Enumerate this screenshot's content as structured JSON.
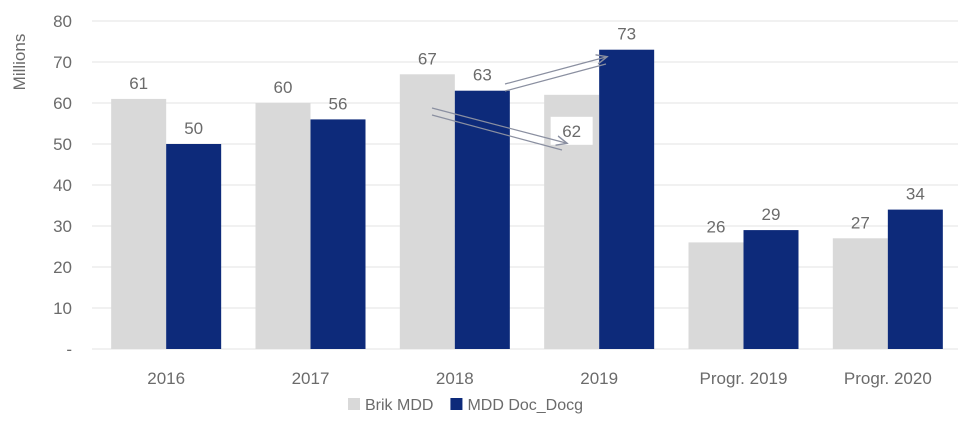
{
  "chart_data": {
    "type": "bar",
    "categories": [
      "2016",
      "2017",
      "2018",
      "2019",
      "Progr. 2019",
      "Progr. 2020"
    ],
    "series": [
      {
        "name": "Brik MDD",
        "values": [
          61,
          60,
          67,
          62,
          26,
          27
        ],
        "color": "#d9d9d9"
      },
      {
        "name": "MDD Doc_Docg",
        "values": [
          50,
          56,
          63,
          73,
          29,
          34
        ],
        "color": "#0d2a7a"
      }
    ],
    "title": "",
    "xlabel": "",
    "ylabel": "Millions",
    "ylim": [
      0,
      80
    ],
    "yticks": [
      {
        "value": 0,
        "label": "-"
      },
      {
        "value": 10,
        "label": "10"
      },
      {
        "value": 20,
        "label": "20"
      },
      {
        "value": 30,
        "label": "30"
      },
      {
        "value": 40,
        "label": "40"
      },
      {
        "value": 50,
        "label": "50"
      },
      {
        "value": 60,
        "label": "60"
      },
      {
        "value": 70,
        "label": "70"
      },
      {
        "value": 80,
        "label": "80"
      }
    ],
    "grid": true,
    "legend_position": "bottom-center",
    "annotations": "arrows linking 2018 values to 2019 values"
  }
}
